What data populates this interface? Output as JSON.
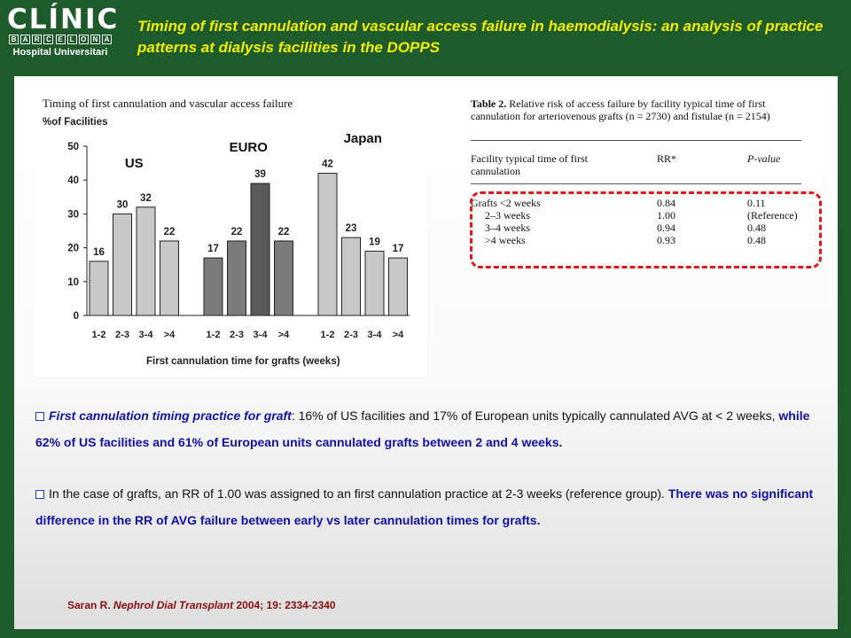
{
  "logo": {
    "main": "CLÍNIC",
    "city_letters": [
      "B",
      "A",
      "R",
      "C",
      "E",
      "L",
      "O",
      "N",
      "A"
    ],
    "sub": "Hospital Universitari"
  },
  "slide_title": "Timing of first cannulation and vascular access failure in haemodialysis: an analysis of practice patterns at dialysis facilities in the DOPPS",
  "chart_data": {
    "type": "bar",
    "title": "Timing of first cannulation and vascular access failure",
    "ylabel": "%of Facilities",
    "xlabel": "First cannulation time for grafts (weeks)",
    "ylim": [
      0,
      50
    ],
    "yticks": [
      0,
      10,
      20,
      30,
      40,
      50
    ],
    "groups": [
      {
        "name": "US",
        "categories": [
          "1-2",
          "2-3",
          "3-4",
          ">4"
        ],
        "values": [
          16,
          30,
          32,
          22
        ],
        "color": "#c8c8c8"
      },
      {
        "name": "EURO",
        "categories": [
          "1-2",
          "2-3",
          "3-4",
          ">4"
        ],
        "values": [
          17,
          22,
          39,
          22
        ],
        "color": "#7a7a7a",
        "highlight_color": "#5a5a5a"
      },
      {
        "name": "Japan",
        "categories": [
          "1-2",
          "2-3",
          "3-4",
          ">4"
        ],
        "values": [
          42,
          23,
          19,
          17
        ],
        "color": "#c8c8c8"
      }
    ],
    "grid": false
  },
  "table": {
    "caption_bold": "Table 2.",
    "caption_text": " Relative risk of access failure by facility typical time of first cannulation for arteriovenous grafts (n = 2730) and fistulae (n = 2154)",
    "headers": [
      "Facility typical time of first cannulation",
      "RR*",
      "P-value"
    ],
    "rows": [
      [
        "Grafts  <2 weeks",
        "0.84",
        "0.11"
      ],
      [
        "2–3 weeks",
        "1.00",
        "(Reference)"
      ],
      [
        "3–4 weeks",
        "0.94",
        "0.48"
      ],
      [
        ">4 weeks",
        "0.93",
        "0.48"
      ]
    ]
  },
  "para1": {
    "lead": "First cannulation timing practice for graft",
    "text1": ": 16% of US facilities and 17% of European units typically cannulated AVG at < 2 weeks, ",
    "emph": "while 62% of US facilities and 61% of European units cannulated grafts between 2 and 4 weeks."
  },
  "para2": {
    "text1": "In the case of grafts, an RR of 1.00 was assigned to an first cannulation practice at 2-3 weeks (reference group). ",
    "emph": "There was no significant difference in the RR of AVG failure between early vs later cannulation times for grafts."
  },
  "citation": {
    "author": "Saran R. ",
    "journal": "Nephrol Dial Transplant",
    "details": " 2004; 19: 2334-2340"
  }
}
